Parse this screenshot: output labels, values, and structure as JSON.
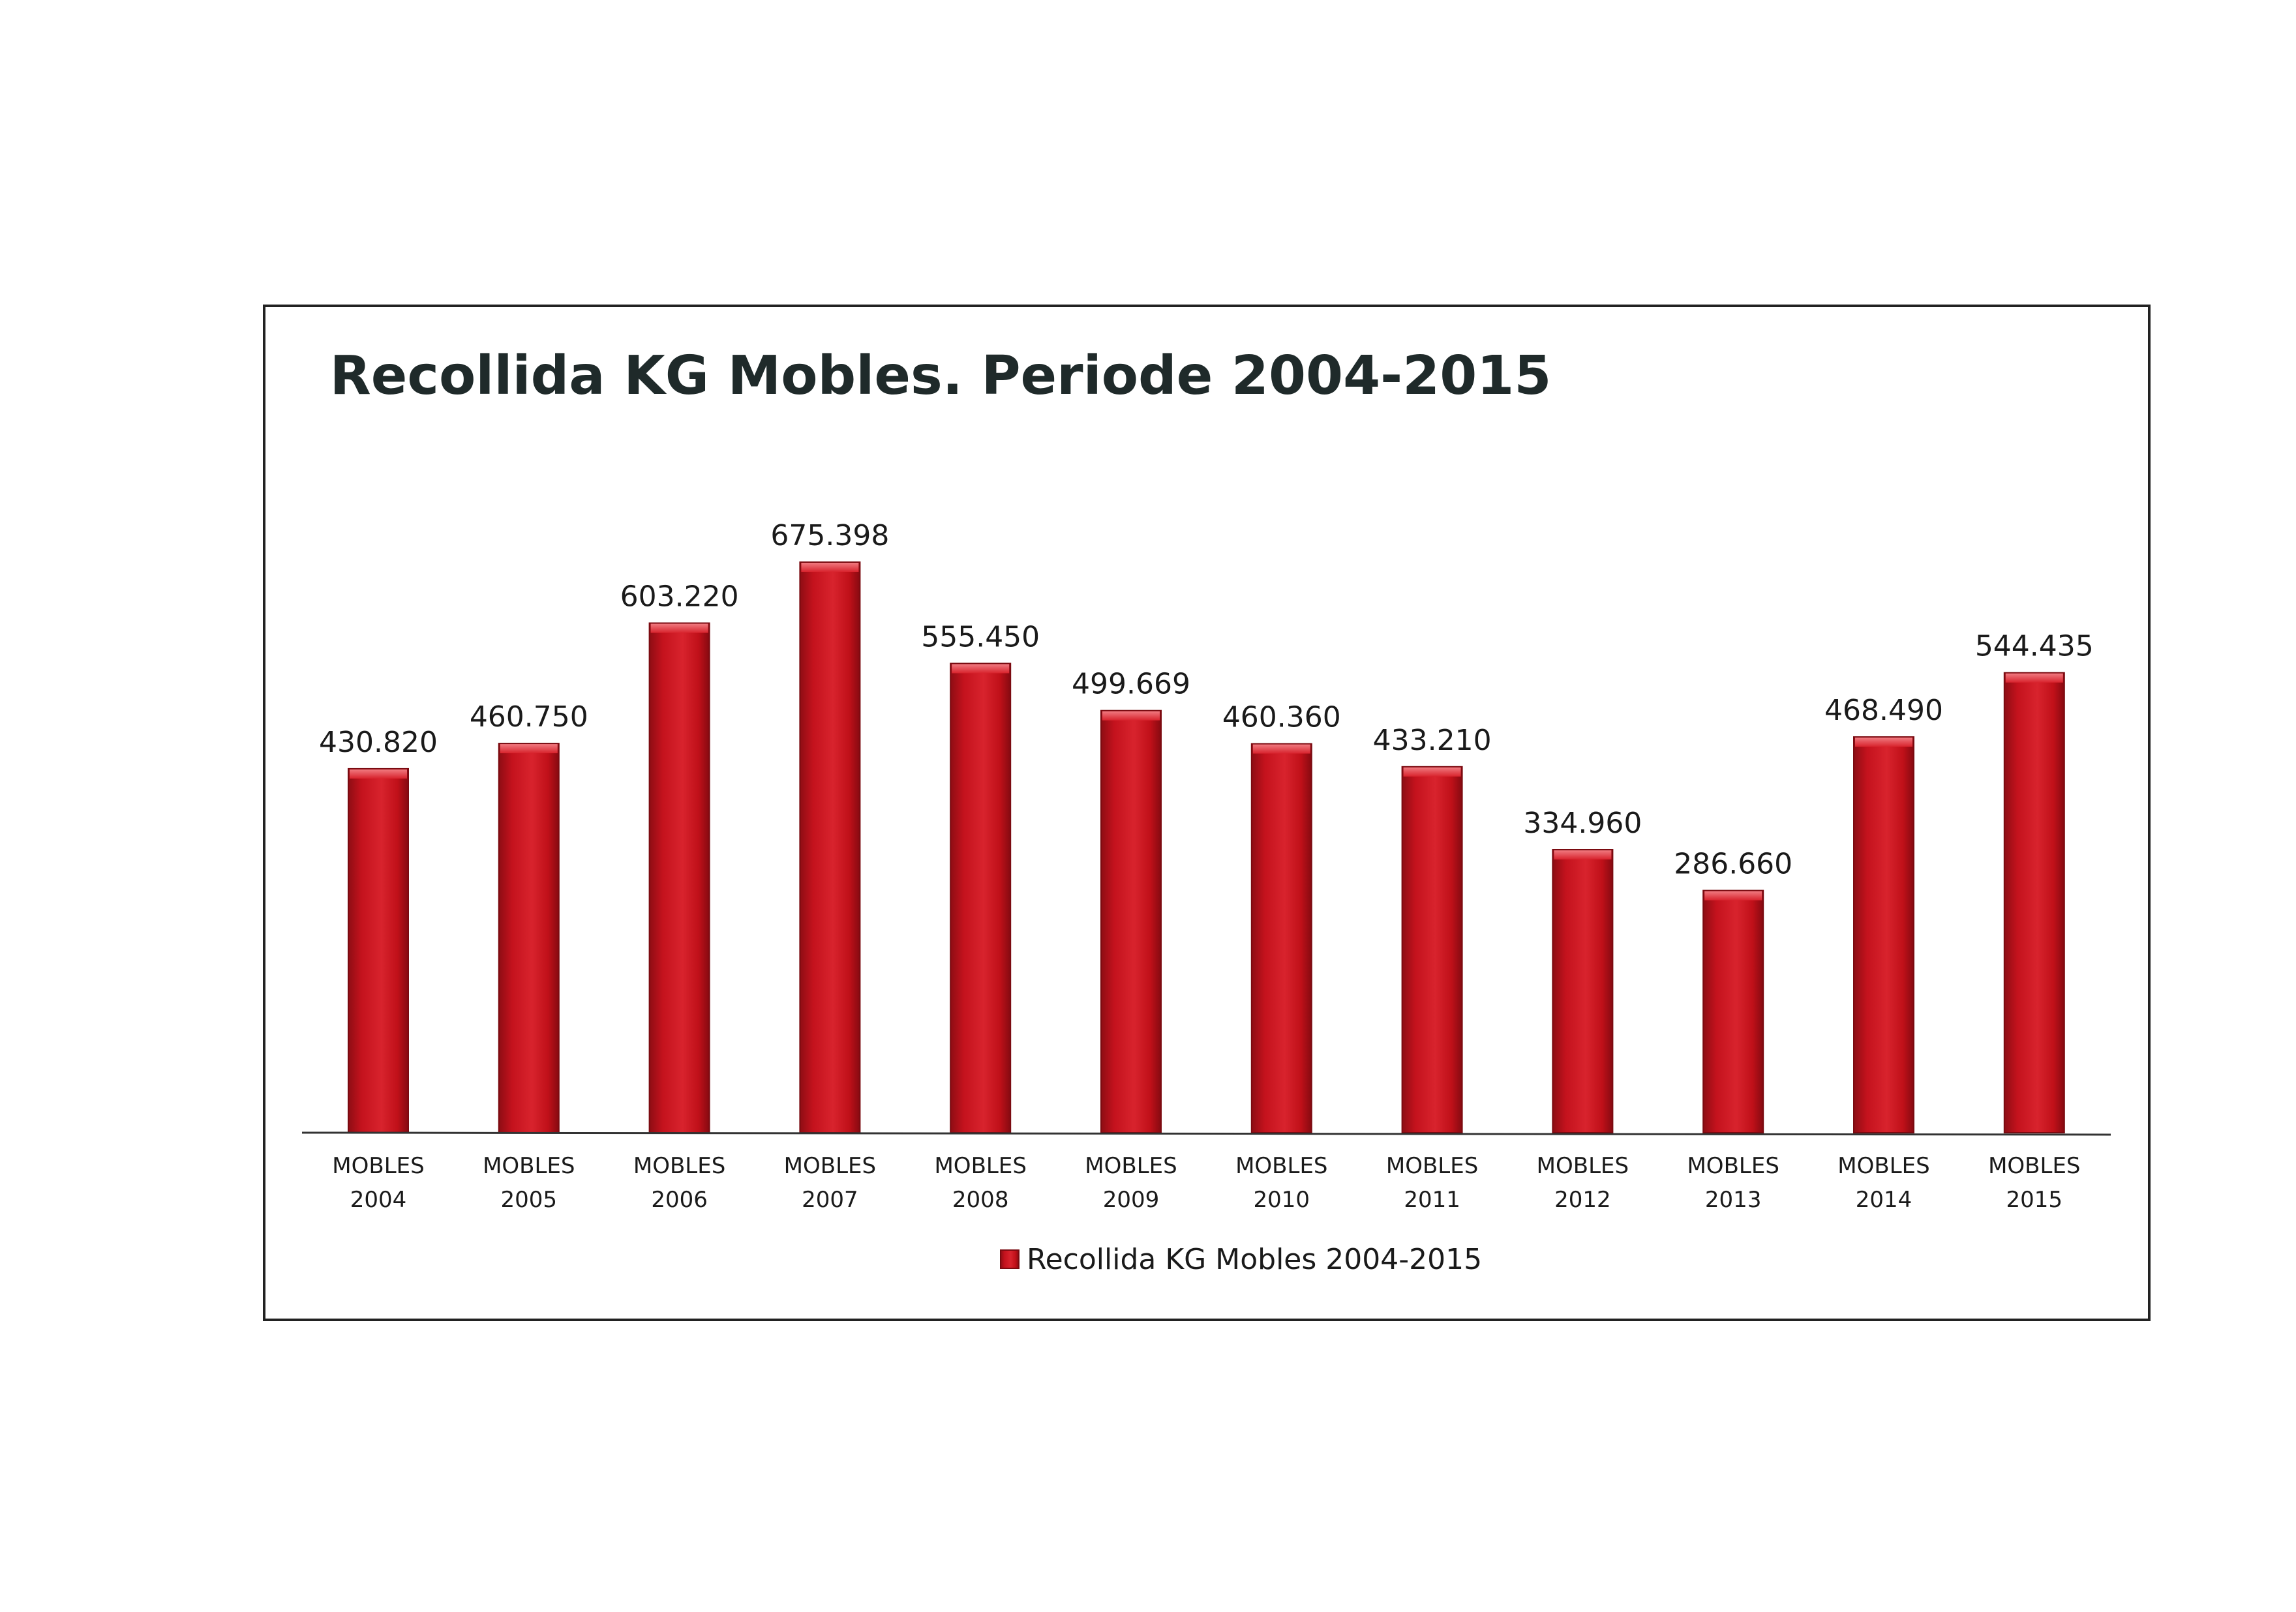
{
  "chart_data": {
    "type": "bar",
    "title": "Recollida KG Mobles. Periode 2004-2015",
    "categories": [
      [
        "MOBLES",
        "2004"
      ],
      [
        "MOBLES",
        "2005"
      ],
      [
        "MOBLES",
        "2006"
      ],
      [
        "MOBLES",
        "2007"
      ],
      [
        "MOBLES",
        "2008"
      ],
      [
        "MOBLES",
        "2009"
      ],
      [
        "MOBLES",
        "2010"
      ],
      [
        "MOBLES",
        "2011"
      ],
      [
        "MOBLES",
        "2012"
      ],
      [
        "MOBLES",
        "2013"
      ],
      [
        "MOBLES",
        "2014"
      ],
      [
        "MOBLES",
        "2015"
      ]
    ],
    "series": [
      {
        "name": "Recollida KG Mobles 2004-2015",
        "color": "#c8141e",
        "values": [
          430820,
          460750,
          603220,
          675398,
          555450,
          499669,
          460360,
          433210,
          334960,
          286660,
          468490,
          544435
        ],
        "labels": [
          "430.820",
          "460.750",
          "603.220",
          "675.398",
          "555.450",
          "499.669",
          "460.360",
          "433.210",
          "334.960",
          "286.660",
          "468.490",
          "544.435"
        ]
      }
    ],
    "ylim": [
      0,
      750000
    ],
    "grid": false,
    "legend": "bottom"
  }
}
